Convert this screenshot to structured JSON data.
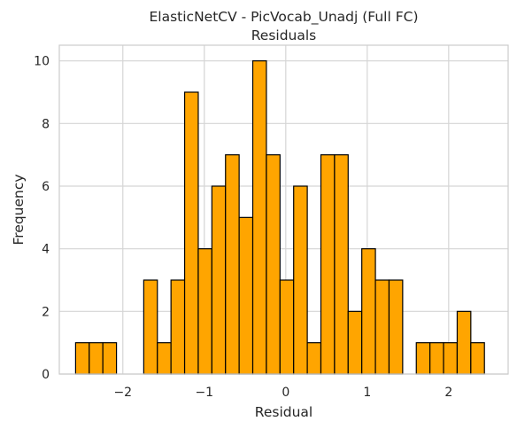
{
  "chart_data": {
    "type": "bar",
    "title": "ElasticNetCV - PicVocab_Unadj (Full FC)",
    "subtitle": "Residuals",
    "xlabel": "Residual",
    "ylabel": "Frequency",
    "xlim": [
      -2.78,
      2.73
    ],
    "ylim": [
      0,
      10.5
    ],
    "xticks": [
      -2,
      -1,
      0,
      1,
      2
    ],
    "xtick_labels": [
      "−2",
      "−1",
      "0",
      "1",
      "2"
    ],
    "yticks": [
      0,
      2,
      4,
      6,
      8,
      10
    ],
    "ytick_labels": [
      "0",
      "2",
      "4",
      "6",
      "8",
      "10"
    ],
    "grid": true,
    "bar_color": "#ffa500",
    "bin_start": -2.58,
    "bin_width": 0.1673,
    "values": [
      1,
      1,
      1,
      0,
      0,
      3,
      1,
      3,
      9,
      4,
      6,
      7,
      5,
      10,
      7,
      3,
      6,
      1,
      7,
      7,
      2,
      4,
      3,
      3,
      0,
      1,
      1,
      1,
      2,
      1
    ]
  }
}
